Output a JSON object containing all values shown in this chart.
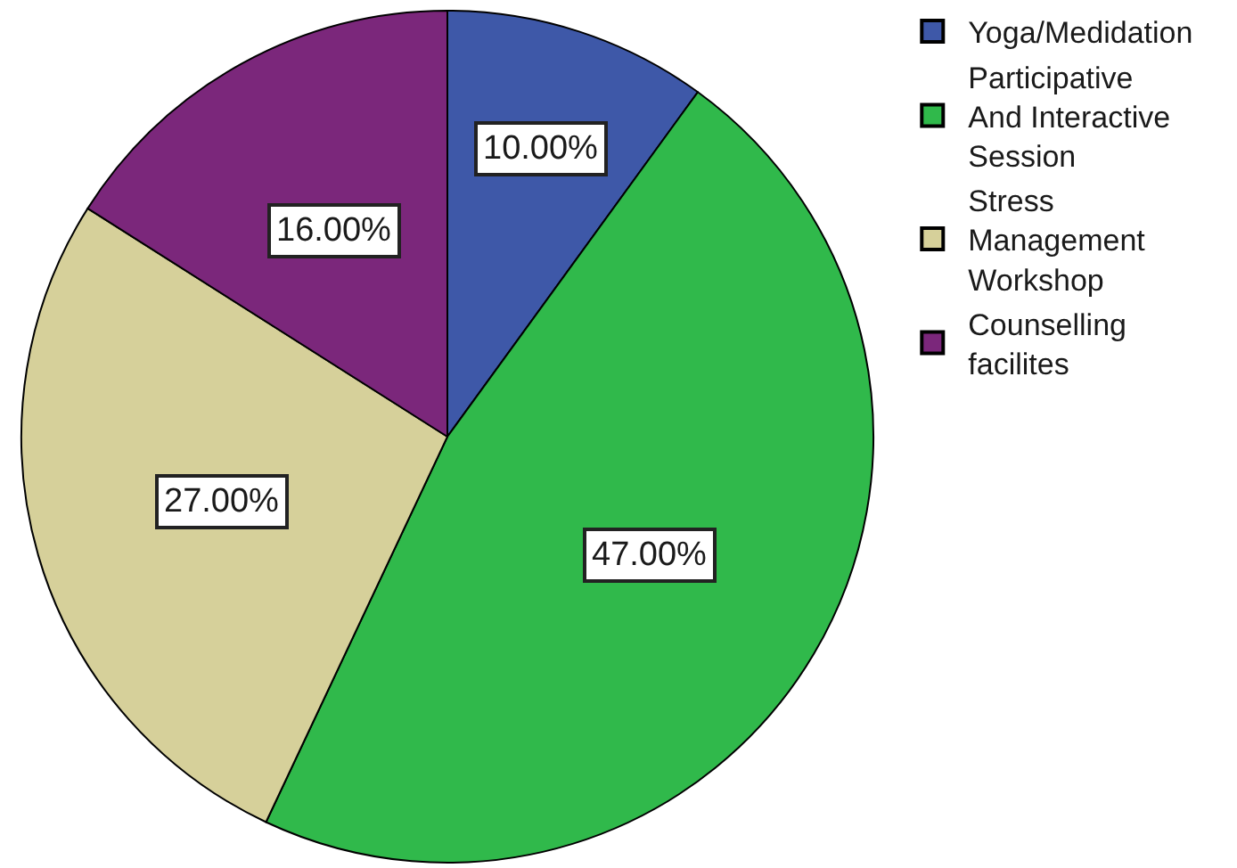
{
  "chart_data": {
    "type": "pie",
    "categories": [
      "Yoga/Medidation",
      "Participative And Interactive Session",
      "Stress Management Workshop",
      "Counselling facilites"
    ],
    "values": [
      10,
      47,
      27,
      16
    ],
    "colors": [
      "#3e58a8",
      "#30b94b",
      "#d6d09a",
      "#7b277b"
    ],
    "value_labels": [
      "10.00%",
      "47.00%",
      "27.00%",
      "16.00%"
    ],
    "legend": "top right"
  }
}
